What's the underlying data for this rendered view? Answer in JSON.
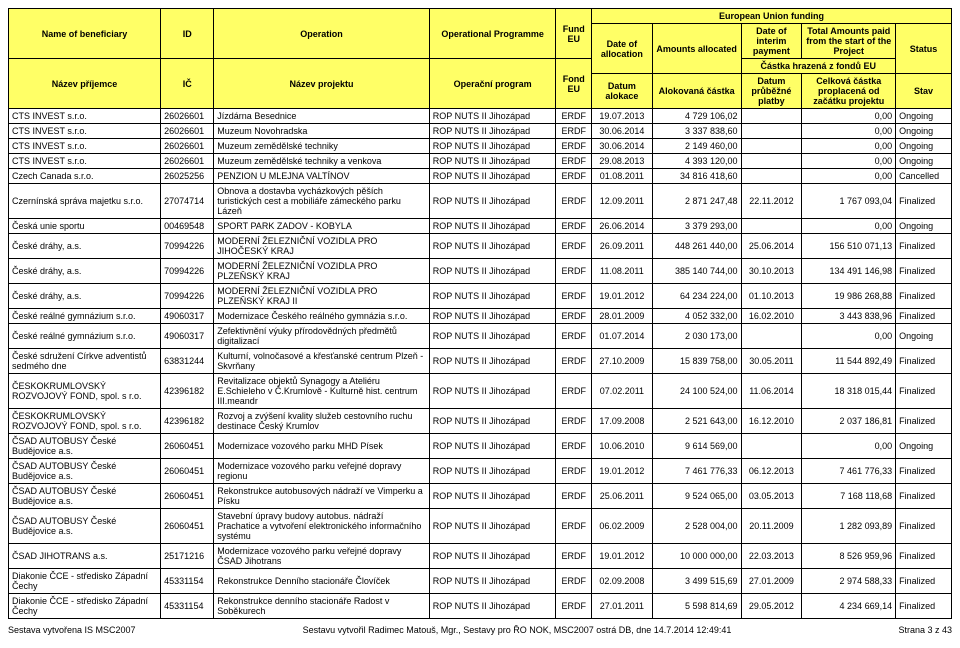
{
  "header": {
    "eu_funding": "European Union funding",
    "castka_hrazena": "Částka hrazená z fondů EU",
    "en": {
      "beneficiary": "Name of beneficiary",
      "id": "ID",
      "operation": "Operation",
      "programme": "Operational Programme",
      "fund": "Fund EU",
      "date_alloc": "Date of allocation",
      "amounts_alloc": "Amounts allocated",
      "date_interim": "Date of interim payment",
      "total_paid": "Total Amounts paid from the start of the Project",
      "status": "Status"
    },
    "cz": {
      "beneficiary": "Název příjemce",
      "id": "IČ",
      "operation": "Název projektu",
      "programme": "Operační program",
      "fund": "Fond EU",
      "date_alloc": "Datum alokace",
      "amounts_alloc": "Alokovaná částka",
      "date_interim": "Datum průběžné platby",
      "total_paid": "Celková částka proplacená od začátku projektu",
      "status": "Stav"
    }
  },
  "rows": [
    {
      "ben": "CTS INVEST s.r.o.",
      "id": "26026601",
      "op": "Jízdárna Besednice",
      "prog": "ROP NUTS II Jihozápad",
      "fund": "ERDF",
      "da": "19.07.2013",
      "aa": "4 729 106,02",
      "di": "",
      "tp": "0,00",
      "st": "Ongoing"
    },
    {
      "ben": "CTS INVEST s.r.o.",
      "id": "26026601",
      "op": "Muzeum Novohradska",
      "prog": "ROP NUTS II Jihozápad",
      "fund": "ERDF",
      "da": "30.06.2014",
      "aa": "3 337 838,60",
      "di": "",
      "tp": "0,00",
      "st": "Ongoing"
    },
    {
      "ben": "CTS INVEST s.r.o.",
      "id": "26026601",
      "op": "Muzeum zemědělské techniky",
      "prog": "ROP NUTS II Jihozápad",
      "fund": "ERDF",
      "da": "30.06.2014",
      "aa": "2 149 460,00",
      "di": "",
      "tp": "0,00",
      "st": "Ongoing"
    },
    {
      "ben": "CTS INVEST s.r.o.",
      "id": "26026601",
      "op": "Muzeum zemědělské techniky a venkova",
      "prog": "ROP NUTS II Jihozápad",
      "fund": "ERDF",
      "da": "29.08.2013",
      "aa": "4 393 120,00",
      "di": "",
      "tp": "0,00",
      "st": "Ongoing"
    },
    {
      "ben": "Czech Canada s.r.o.",
      "id": "26025256",
      "op": "PENZION U MLEJNA VALTÍNOV",
      "prog": "ROP NUTS II Jihozápad",
      "fund": "ERDF",
      "da": "01.08.2011",
      "aa": "34 816 418,60",
      "di": "",
      "tp": "0,00",
      "st": "Cancelled"
    },
    {
      "ben": "Czernínská správa majetku s.r.o.",
      "id": "27074714",
      "op": "Obnova a dostavba vycházkových pěších turistických cest a mobiliáře zámeckého parku Lázeň",
      "prog": "ROP NUTS II Jihozápad",
      "fund": "ERDF",
      "da": "12.09.2011",
      "aa": "2 871 247,48",
      "di": "22.11.2012",
      "tp": "1 767 093,04",
      "st": "Finalized"
    },
    {
      "ben": "Česká unie sportu",
      "id": "00469548",
      "op": "SPORT PARK ZADOV - KOBYLA",
      "prog": "ROP NUTS II Jihozápad",
      "fund": "ERDF",
      "da": "26.06.2014",
      "aa": "3 379 293,00",
      "di": "",
      "tp": "0,00",
      "st": "Ongoing"
    },
    {
      "ben": "České dráhy, a.s.",
      "id": "70994226",
      "op": "MODERNÍ ŽELEZNIČNÍ VOZIDLA PRO JIHOČESKÝ KRAJ",
      "prog": "ROP NUTS II Jihozápad",
      "fund": "ERDF",
      "da": "26.09.2011",
      "aa": "448 261 440,00",
      "di": "25.06.2014",
      "tp": "156 510 071,13",
      "st": "Finalized"
    },
    {
      "ben": "České dráhy, a.s.",
      "id": "70994226",
      "op": "MODERNÍ ŽELEZNIČNÍ VOZIDLA PRO PLZEŇSKÝ KRAJ",
      "prog": "ROP NUTS II Jihozápad",
      "fund": "ERDF",
      "da": "11.08.2011",
      "aa": "385 140 744,00",
      "di": "30.10.2013",
      "tp": "134 491 146,98",
      "st": "Finalized"
    },
    {
      "ben": "České dráhy, a.s.",
      "id": "70994226",
      "op": "MODERNÍ ŽELEZNIČNÍ VOZIDLA PRO PLZEŇSKÝ KRAJ II",
      "prog": "ROP NUTS II Jihozápad",
      "fund": "ERDF",
      "da": "19.01.2012",
      "aa": "64 234 224,00",
      "di": "01.10.2013",
      "tp": "19 986 268,88",
      "st": "Finalized"
    },
    {
      "ben": "České reálné gymnázium s.r.o.",
      "id": "49060317",
      "op": "Modernizace Českého reálného gymnázia s.r.o.",
      "prog": "ROP NUTS II Jihozápad",
      "fund": "ERDF",
      "da": "28.01.2009",
      "aa": "4 052 332,00",
      "di": "16.02.2010",
      "tp": "3 443 838,96",
      "st": "Finalized"
    },
    {
      "ben": "České reálné gymnázium s.r.o.",
      "id": "49060317",
      "op": "Zefektivnění výuky přírodovědných předmětů digitalizací",
      "prog": "ROP NUTS II Jihozápad",
      "fund": "ERDF",
      "da": "01.07.2014",
      "aa": "2 030 173,00",
      "di": "",
      "tp": "0,00",
      "st": "Ongoing"
    },
    {
      "ben": "České sdružení Církve adventistů sedmého dne",
      "id": "63831244",
      "op": "Kulturní, volnočasové a křesťanské centrum Plzeň - Skvrňany",
      "prog": "ROP NUTS II Jihozápad",
      "fund": "ERDF",
      "da": "27.10.2009",
      "aa": "15 839 758,00",
      "di": "30.05.2011",
      "tp": "11 544 892,49",
      "st": "Finalized"
    },
    {
      "ben": "ČESKOKRUMLOVSKÝ ROZVOJOVÝ FOND, spol. s r.o.",
      "id": "42396182",
      "op": "Revitalizace objektů Synagogy a Ateliéru E.Schieleho v Č.Krumlově - Kulturně hist. centrum III.meandr",
      "prog": "ROP NUTS II Jihozápad",
      "fund": "ERDF",
      "da": "07.02.2011",
      "aa": "24 100 524,00",
      "di": "11.06.2014",
      "tp": "18 318 015,44",
      "st": "Finalized"
    },
    {
      "ben": "ČESKOKRUMLOVSKÝ ROZVOJOVÝ FOND, spol. s r.o.",
      "id": "42396182",
      "op": "Rozvoj a zvýšení kvality služeb cestovního ruchu destinace Český Krumlov",
      "prog": "ROP NUTS II Jihozápad",
      "fund": "ERDF",
      "da": "17.09.2008",
      "aa": "2 521 643,00",
      "di": "16.12.2010",
      "tp": "2 037 186,81",
      "st": "Finalized"
    },
    {
      "ben": "ČSAD AUTOBUSY České Budějovice a.s.",
      "id": "26060451",
      "op": "Modernizace vozového parku MHD Písek",
      "prog": "ROP NUTS II Jihozápad",
      "fund": "ERDF",
      "da": "10.06.2010",
      "aa": "9 614 569,00",
      "di": "",
      "tp": "0,00",
      "st": "Ongoing"
    },
    {
      "ben": "ČSAD AUTOBUSY České Budějovice a.s.",
      "id": "26060451",
      "op": "Modernizace vozového parku veřejné dopravy regionu",
      "prog": "ROP NUTS II Jihozápad",
      "fund": "ERDF",
      "da": "19.01.2012",
      "aa": "7 461 776,33",
      "di": "06.12.2013",
      "tp": "7 461 776,33",
      "st": "Finalized"
    },
    {
      "ben": "ČSAD AUTOBUSY České Budějovice a.s.",
      "id": "26060451",
      "op": "Rekonstrukce autobusových nádraží ve Vimperku a Písku",
      "prog": "ROP NUTS II Jihozápad",
      "fund": "ERDF",
      "da": "25.06.2011",
      "aa": "9 524 065,00",
      "di": "03.05.2013",
      "tp": "7 168 118,68",
      "st": "Finalized"
    },
    {
      "ben": "ČSAD AUTOBUSY České Budějovice a.s.",
      "id": "26060451",
      "op": "Stavební úpravy budovy autobus. nádraží Prachatice a vytvoření elektronického informačního systému",
      "prog": "ROP NUTS II Jihozápad",
      "fund": "ERDF",
      "da": "06.02.2009",
      "aa": "2 528 004,00",
      "di": "20.11.2009",
      "tp": "1 282 093,89",
      "st": "Finalized"
    },
    {
      "ben": "ČSAD JIHOTRANS a.s.",
      "id": "25171216",
      "op": "Modernizace vozového parku veřejné dopravy ČSAD Jihotrans",
      "prog": "ROP NUTS II Jihozápad",
      "fund": "ERDF",
      "da": "19.01.2012",
      "aa": "10 000 000,00",
      "di": "22.03.2013",
      "tp": "8 526 959,96",
      "st": "Finalized"
    },
    {
      "ben": "Diakonie ČCE - středisko Západní Čechy",
      "id": "45331154",
      "op": "Rekonstrukce Denního stacionáře Človíček",
      "prog": "ROP NUTS II Jihozápad",
      "fund": "ERDF",
      "da": "02.09.2008",
      "aa": "3 499 515,69",
      "di": "27.01.2009",
      "tp": "2 974 588,33",
      "st": "Finalized"
    },
    {
      "ben": "Diakonie ČCE - středisko Západní Čechy",
      "id": "45331154",
      "op": "Rekonstrukce denního stacionáře Radost v Soběkurech",
      "prog": "ROP NUTS II Jihozápad",
      "fund": "ERDF",
      "da": "27.01.2011",
      "aa": "5 598 814,69",
      "di": "29.05.2012",
      "tp": "4 234 669,14",
      "st": "Finalized"
    }
  ],
  "footer": {
    "left": "Sestava vytvořena IS MSC2007",
    "center": "Sestavu vytvořil Radimec Matouš, Mgr., Sestavy pro ŘO NOK, MSC2007 ostrá DB, dne 14.7.2014 12:49:41",
    "right": "Strana 3 z 43"
  },
  "colwidths": [
    "120",
    "42",
    "170",
    "100",
    "28",
    "48",
    "70",
    "48",
    "74",
    "44"
  ]
}
